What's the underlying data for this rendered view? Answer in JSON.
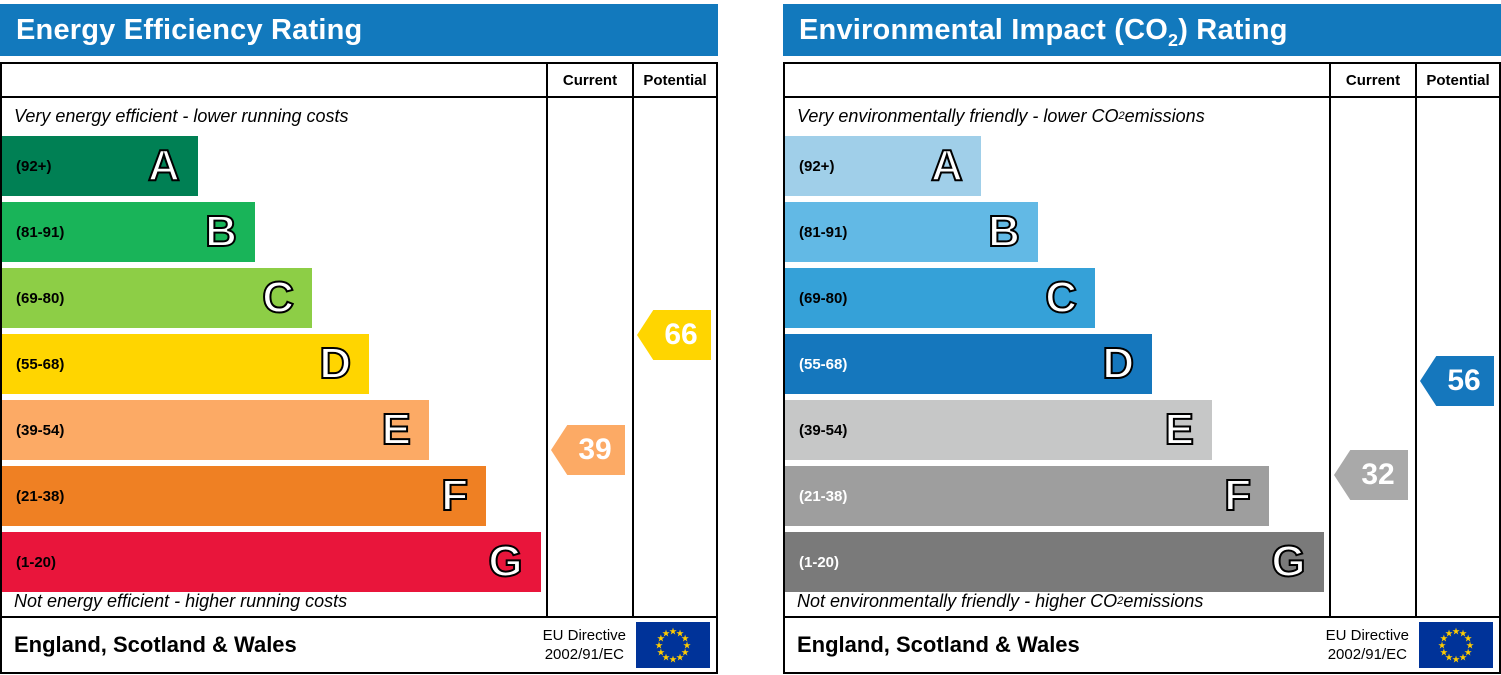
{
  "eu_flag": {
    "background": "#003399",
    "star": "#ffcc00"
  },
  "chart_data": [
    {
      "type": "bar",
      "chart": "energy-efficiency-rating",
      "title": "Energy Efficiency Rating",
      "header_color": "#1279bd",
      "columns": [
        "Current",
        "Potential"
      ],
      "top_caption": "Very energy efficient - lower running costs",
      "bottom_caption": "Not energy efficient - higher running costs",
      "bands": [
        {
          "letter": "A",
          "label": "(92+)",
          "min": 92,
          "max": 100,
          "color": "#008054",
          "width_pct": 36,
          "label_color": "#000000"
        },
        {
          "letter": "B",
          "label": "(81-91)",
          "min": 81,
          "max": 91,
          "color": "#19b459",
          "width_pct": 46.5,
          "label_color": "#000000"
        },
        {
          "letter": "C",
          "label": "(69-80)",
          "min": 69,
          "max": 80,
          "color": "#8dce46",
          "width_pct": 57,
          "label_color": "#000000"
        },
        {
          "letter": "D",
          "label": "(55-68)",
          "min": 55,
          "max": 68,
          "color": "#ffd500",
          "width_pct": 67.5,
          "label_color": "#000000"
        },
        {
          "letter": "E",
          "label": "(39-54)",
          "min": 39,
          "max": 54,
          "color": "#fcaa65",
          "width_pct": 78.5,
          "label_color": "#000000"
        },
        {
          "letter": "F",
          "label": "(21-38)",
          "min": 21,
          "max": 38,
          "color": "#ef8023",
          "width_pct": 89,
          "label_color": "#000000"
        },
        {
          "letter": "G",
          "label": "(1-20)",
          "min": 1,
          "max": 20,
          "color": "#e9153b",
          "width_pct": 99,
          "label_color": "#000000"
        }
      ],
      "current": {
        "value": 39,
        "band": "E",
        "color": "#fcaa65"
      },
      "potential": {
        "value": 66,
        "band": "D",
        "color": "#ffd500"
      },
      "footer": {
        "region": "England, Scotland & Wales",
        "directive": [
          "EU Directive",
          "2002/91/EC"
        ]
      }
    },
    {
      "type": "bar",
      "chart": "environmental-impact-co2-rating",
      "title": "Environmental Impact (CO2) Rating",
      "title_parts": {
        "pre": "Environmental Impact (CO",
        "sub": "2",
        "post": ") Rating"
      },
      "header_color": "#1279bd",
      "columns": [
        "Current",
        "Potential"
      ],
      "top_caption_parts": {
        "pre": "Very environmentally friendly - lower CO",
        "sub": "2",
        "post": " emissions"
      },
      "bottom_caption_parts": {
        "pre": "Not environmentally friendly - higher CO",
        "sub": "2",
        "post": " emissions"
      },
      "bands": [
        {
          "letter": "A",
          "label": "(92+)",
          "min": 92,
          "max": 100,
          "color": "#a0cfe9",
          "width_pct": 36,
          "label_color": "#000000"
        },
        {
          "letter": "B",
          "label": "(81-91)",
          "min": 81,
          "max": 91,
          "color": "#62b9e5",
          "width_pct": 46.5,
          "label_color": "#000000"
        },
        {
          "letter": "C",
          "label": "(69-80)",
          "min": 69,
          "max": 80,
          "color": "#35a1d8",
          "width_pct": 57,
          "label_color": "#000000"
        },
        {
          "letter": "D",
          "label": "(55-68)",
          "min": 55,
          "max": 68,
          "color": "#1577bd",
          "width_pct": 67.5,
          "label_color": "#ffffff"
        },
        {
          "letter": "E",
          "label": "(39-54)",
          "min": 39,
          "max": 54,
          "color": "#c6c7c7",
          "width_pct": 78.5,
          "label_color": "#000000"
        },
        {
          "letter": "F",
          "label": "(21-38)",
          "min": 21,
          "max": 38,
          "color": "#9e9e9e",
          "width_pct": 89,
          "label_color": "#ffffff"
        },
        {
          "letter": "G",
          "label": "(1-20)",
          "min": 1,
          "max": 20,
          "color": "#7a7a7a",
          "width_pct": 99,
          "label_color": "#ffffff"
        }
      ],
      "current": {
        "value": 32,
        "band": "F",
        "color": "#a9a9a9"
      },
      "potential": {
        "value": 56,
        "band": "D",
        "color": "#1577bd"
      },
      "footer": {
        "region": "England, Scotland & Wales",
        "directive": [
          "EU Directive",
          "2002/91/EC"
        ]
      }
    }
  ]
}
